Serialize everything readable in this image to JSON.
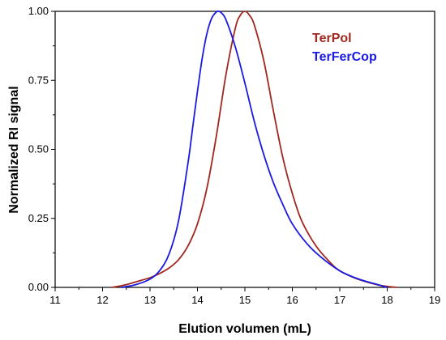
{
  "chart_data": {
    "type": "line",
    "title": "",
    "xlabel": "Elution volumen (mL)",
    "ylabel": "Normalized RI signal",
    "xlim": [
      11,
      19
    ],
    "ylim": [
      0,
      1.0
    ],
    "x_ticks": [
      "11",
      "12",
      "13",
      "14",
      "15",
      "16",
      "17",
      "18",
      "19"
    ],
    "y_ticks": [
      "0.00",
      "0.25",
      "0.50",
      "0.75",
      "1.00"
    ],
    "grid": false,
    "legend_position": "top-right",
    "series": [
      {
        "name": "TerPol",
        "color": "#a0281e",
        "x": [
          12.2,
          12.5,
          12.8,
          13.0,
          13.2,
          13.4,
          13.6,
          13.8,
          14.0,
          14.2,
          14.4,
          14.6,
          14.8,
          14.9,
          15.0,
          15.1,
          15.2,
          15.4,
          15.6,
          15.8,
          16.0,
          16.2,
          16.5,
          16.8,
          17.0,
          17.3,
          17.6,
          17.9,
          18.2
        ],
        "y": [
          0.0,
          0.01,
          0.025,
          0.035,
          0.05,
          0.07,
          0.1,
          0.15,
          0.23,
          0.36,
          0.55,
          0.77,
          0.94,
          0.985,
          1.0,
          0.985,
          0.95,
          0.82,
          0.64,
          0.47,
          0.34,
          0.24,
          0.15,
          0.09,
          0.06,
          0.035,
          0.018,
          0.006,
          0.0
        ]
      },
      {
        "name": "TerFerCop",
        "color": "#1a1ae0",
        "x": [
          12.4,
          12.7,
          13.0,
          13.2,
          13.4,
          13.6,
          13.8,
          13.9,
          14.0,
          14.1,
          14.2,
          14.3,
          14.4,
          14.45,
          14.5,
          14.6,
          14.8,
          15.0,
          15.2,
          15.4,
          15.6,
          15.8,
          16.0,
          16.3,
          16.6,
          17.0,
          17.4,
          17.8,
          18.0
        ],
        "y": [
          0.0,
          0.01,
          0.03,
          0.06,
          0.12,
          0.24,
          0.45,
          0.58,
          0.71,
          0.83,
          0.92,
          0.975,
          0.998,
          1.0,
          0.995,
          0.97,
          0.87,
          0.74,
          0.6,
          0.48,
          0.38,
          0.3,
          0.23,
          0.16,
          0.11,
          0.06,
          0.03,
          0.01,
          0.0
        ]
      }
    ]
  }
}
